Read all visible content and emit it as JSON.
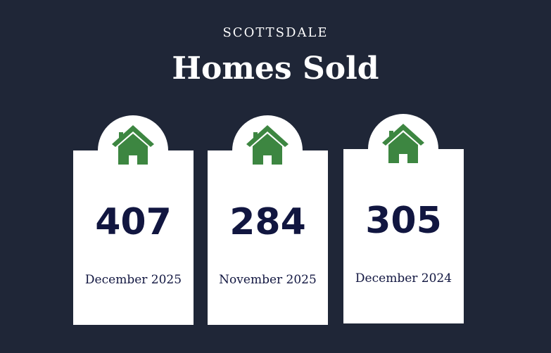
{
  "header": {
    "kicker": "SCOTTSDALE",
    "title": "Homes Sold"
  },
  "colors": {
    "background": "#1f2637",
    "icon": "#3d8641",
    "number": "#111640"
  },
  "cards": [
    {
      "icon": "house-icon",
      "value": "407",
      "label": "December 2025"
    },
    {
      "icon": "house-icon",
      "value": "284",
      "label": "November 2025"
    },
    {
      "icon": "house-icon",
      "value": "305",
      "label": "December 2024"
    }
  ]
}
